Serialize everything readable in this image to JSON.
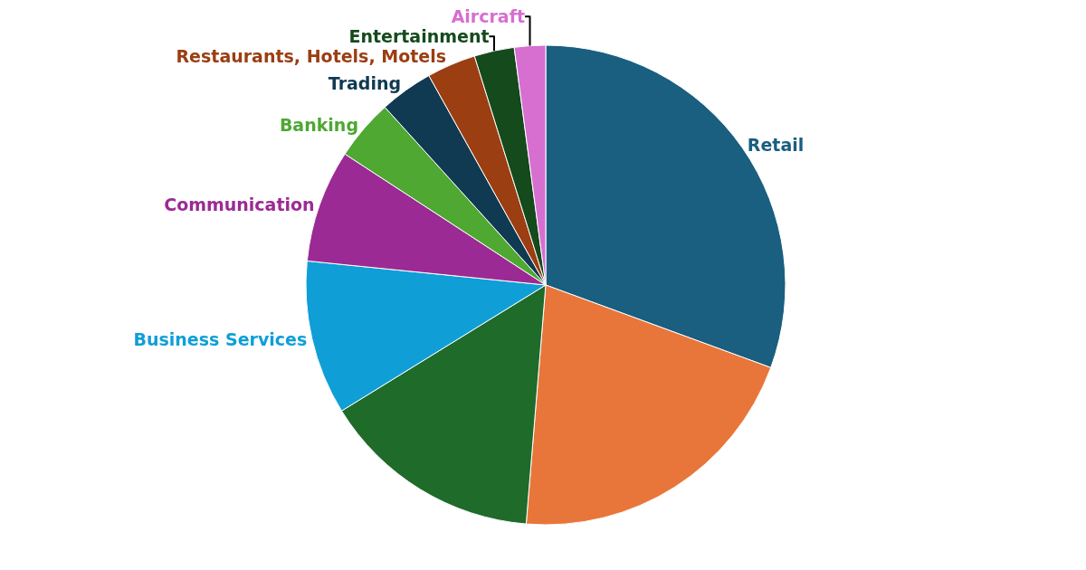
{
  "chart_data": {
    "type": "pie",
    "categories": [
      "Retail",
      null,
      null,
      "Business Services",
      "Communication",
      "Banking",
      "Trading",
      "Restaurants, Hotels, Motels",
      "Entertainment",
      "Aircraft"
    ],
    "values": [
      30.6,
      20.7,
      14.9,
      10.4,
      7.6,
      4.1,
      3.6,
      3.3,
      2.7,
      2.1
    ],
    "colors": [
      "#1a5e80",
      "#e8763a",
      "#1e6b2a",
      "#0f9fd6",
      "#9c2a94",
      "#4ea832",
      "#0f3a52",
      "#9b3e12",
      "#144a1c",
      "#d66fd0"
    ],
    "legend": false
  }
}
